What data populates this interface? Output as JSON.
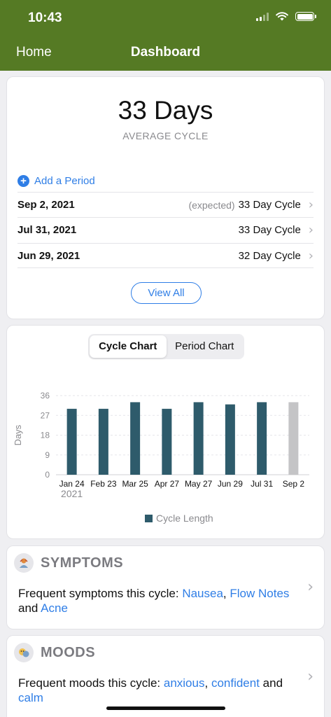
{
  "status_bar": {
    "time": "10:43"
  },
  "nav": {
    "back_label": "Home",
    "title": "Dashboard"
  },
  "summary": {
    "average_value": "33 Days",
    "average_label": "AVERAGE CYCLE",
    "add_period_label": "Add a Period",
    "periods": [
      {
        "date": "Sep 2, 2021",
        "note": "(expected)",
        "cycle": "33 Day Cycle"
      },
      {
        "date": "Jul 31, 2021",
        "note": "",
        "cycle": "33 Day Cycle"
      },
      {
        "date": "Jun 29, 2021",
        "note": "",
        "cycle": "32 Day Cycle"
      }
    ],
    "view_all_label": "View All"
  },
  "chart_tabs": {
    "cycle_label": "Cycle Chart",
    "period_label": "Period Chart",
    "active": "cycle"
  },
  "chart_data": {
    "type": "bar",
    "categories": [
      "Jan 24",
      "Feb 23",
      "Mar 25",
      "Apr 27",
      "May 27",
      "Jun 29",
      "Jul 31",
      "Sep 2"
    ],
    "year_label": "2021",
    "series": [
      {
        "name": "Cycle Length",
        "values": [
          30,
          30,
          33,
          30,
          33,
          32,
          33,
          33
        ]
      }
    ],
    "expected_index": 7,
    "ylabel": "Days",
    "yticks": [
      0,
      9,
      18,
      27,
      36
    ],
    "ylim": [
      0,
      36
    ],
    "grid": true,
    "legend": "bottom",
    "colors": {
      "bar": "#2e5b6b",
      "expected_bar": "#c4c4c6"
    }
  },
  "symptoms": {
    "title": "SYMPTOMS",
    "intro": "Frequent symptoms this cycle: ",
    "item1": "Nausea",
    "sep1": ", ",
    "item2": "Flow Notes",
    "conj": " and ",
    "item3": "Acne"
  },
  "moods": {
    "title": "MOODS",
    "intro": "Frequent moods this cycle: ",
    "item1": "anxious",
    "sep1": ", ",
    "item2": "confident",
    "conj": " and ",
    "item3": "calm"
  },
  "colors": {
    "header": "#557a24",
    "accent": "#2f7ee6"
  }
}
